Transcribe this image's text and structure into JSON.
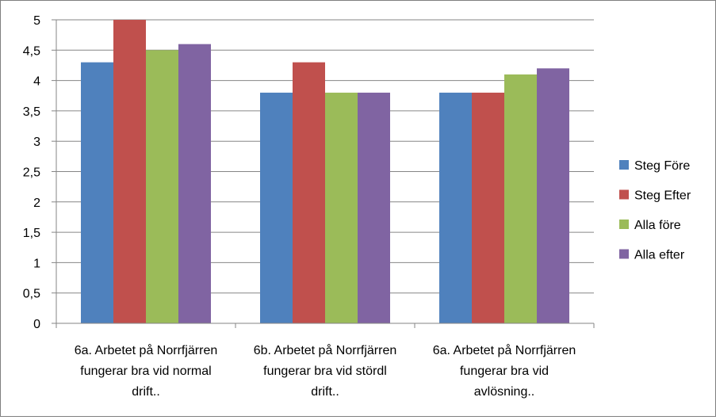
{
  "chart_data": {
    "type": "bar",
    "categories": [
      [
        "6a. Arbetet på Norrfjärren",
        "fungerar bra vid normal",
        "drift.."
      ],
      [
        "6b. Arbetet på Norrfjärren",
        "fungerar bra vid stördl",
        "drift.."
      ],
      [
        "6a. Arbetet på Norrfjärren",
        "fungerar bra vid",
        "avlösning.."
      ]
    ],
    "series": [
      {
        "name": "Steg Före",
        "color": "#4f81bd",
        "values": [
          4.3,
          3.8,
          3.8
        ]
      },
      {
        "name": "Steg Efter",
        "color": "#c0504d",
        "values": [
          5.0,
          4.3,
          3.8
        ]
      },
      {
        "name": "Alla före",
        "color": "#9bbb59",
        "values": [
          4.5,
          3.8,
          4.1
        ]
      },
      {
        "name": "Alla efter",
        "color": "#8064a2",
        "values": [
          4.6,
          3.8,
          4.2
        ]
      }
    ],
    "yticks": [
      "0",
      "0,5",
      "1",
      "1,5",
      "2",
      "2,5",
      "3",
      "3,5",
      "4",
      "4,5",
      "5"
    ],
    "ylim": [
      0,
      5
    ],
    "grid": true,
    "legend": "right",
    "title": "",
    "xlabel": "",
    "ylabel": ""
  }
}
